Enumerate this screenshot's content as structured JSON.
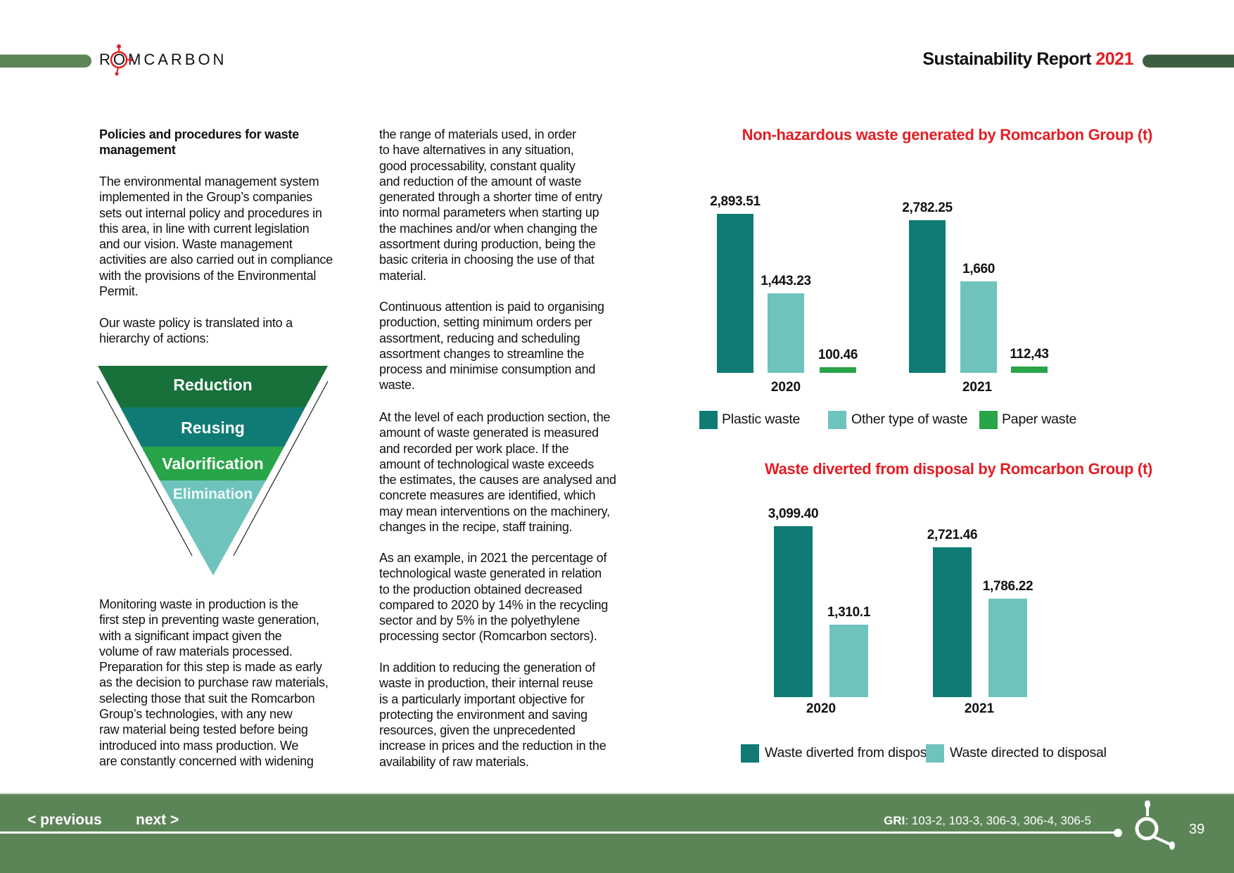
{
  "header": {
    "logo_text": "ROMCARBON",
    "report_title": "Sustainability Report",
    "report_year": "2021"
  },
  "colors": {
    "accent_red": "#e31e24",
    "dark_teal": "#0f7b74",
    "light_teal": "#6fc3bd",
    "green": "#28a449",
    "dark_green": "#18703a",
    "footer_green": "#5c8557"
  },
  "column1": {
    "heading": "Policies and procedures for waste\nmanagement",
    "p1": "The environmental management system\nimplemented in the Group’s companies\nsets out internal policy and procedures in\nthis area, in line with current legislation\nand our vision. Waste management\nactivities are also carried out in compliance\nwith the provisions of the Environmental\nPermit.",
    "p2": "Our waste policy is translated into a\nhierarchy of actions:",
    "p3": "Monitoring waste in production is the\nfirst step in preventing waste generation,\nwith a significant impact given the\nvolume of raw materials processed.\nPreparation for this step is made as early\nas the decision to purchase raw materials,\nselecting those that suit the Romcarbon\nGroup’s technologies, with any new\nraw material being tested before being\nintroduced into mass production. We\nare constantly concerned with widening"
  },
  "hierarchy": {
    "levels": [
      "Reduction",
      "Reusing",
      "Valorification",
      "Elimination"
    ]
  },
  "column2": {
    "p1": "the range of materials used, in order\nto have alternatives in any situation,\ngood processability, constant quality\nand reduction of the amount of waste\ngenerated through a shorter time of entry\ninto normal parameters when starting up\nthe machines and/or when changing the\nassortment during production, being the\nbasic criteria in choosing the use of that\nmaterial.",
    "p2": "Continuous attention is paid to organising\nproduction, setting minimum orders per\nassortment, reducing and scheduling\nassortment changes to streamline the\nprocess and minimise consumption and\nwaste.",
    "p3": "At the level of each production section, the\namount of waste generated is measured\nand recorded per work place. If the\namount of technological waste exceeds\nthe estimates, the causes are analysed and\nconcrete measures are identified, which\nmay mean interventions on the machinery,\nchanges in the recipe, staff training.",
    "p4": "As an example, in 2021 the percentage of\ntechnological waste generated in relation\nto the production obtained decreased\ncompared to 2020 by 14% in the recycling\nsector and by 5% in the polyethylene\nprocessing sector (Romcarbon sectors).",
    "p5": "In addition to reducing the generation of\nwaste in production, their internal reuse\nis a particularly important objective for\nprotecting the environment and saving\nresources, given the unprecedented\nincrease in prices and the reduction in the\navailability of raw materials."
  },
  "chart_data": [
    {
      "type": "bar",
      "title": "Non-hazardous waste generated by Romcarbon Group (t)",
      "categories": [
        "2020",
        "2021"
      ],
      "series": [
        {
          "name": "Plastic waste",
          "values": [
            2893.51,
            2782.25
          ],
          "labels": [
            "2,893.51",
            "2,782.25"
          ],
          "color": "#0f7b74"
        },
        {
          "name": "Other type of waste",
          "values": [
            1443.23,
            1660
          ],
          "labels": [
            "1,443.23",
            "1,660"
          ],
          "color": "#6fc3bd"
        },
        {
          "name": "Paper waste",
          "values": [
            100.46,
            112.43
          ],
          "labels": [
            "100.46",
            "112,43"
          ],
          "color": "#28a449"
        }
      ],
      "legend": "bottom",
      "grid": false
    },
    {
      "type": "bar",
      "title": "Waste diverted from disposal by Romcarbon Group (t)",
      "categories": [
        "2020",
        "2021"
      ],
      "series": [
        {
          "name": "Waste diverted from disposal",
          "values": [
            3099.4,
            2721.46
          ],
          "labels": [
            "3,099.40",
            "2,721.46"
          ],
          "color": "#0f7b74"
        },
        {
          "name": "Waste directed to disposal",
          "values": [
            1310.1,
            1786.22
          ],
          "labels": [
            "1,310.1",
            "1,786.22"
          ],
          "color": "#6fc3bd"
        }
      ],
      "legend": "bottom",
      "grid": false
    }
  ],
  "footer": {
    "previous": "< previous",
    "next": "next >",
    "gri_label": "GRI",
    "gri_codes": ": 103-2, 103-3, 306-3, 306-4, 306-5",
    "page_number": "39"
  }
}
